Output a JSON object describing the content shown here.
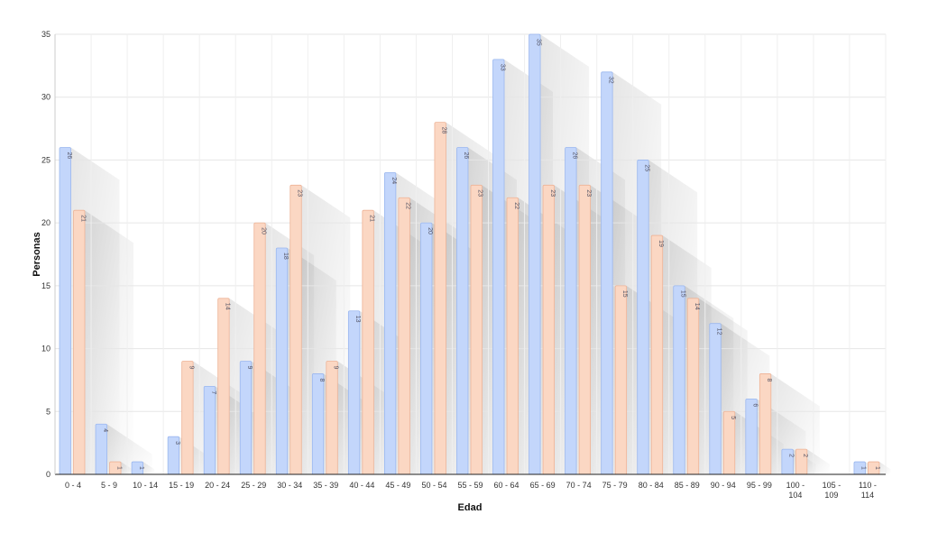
{
  "chart_data": {
    "type": "bar",
    "title": "",
    "xlabel": "Edad",
    "ylabel": "Personas",
    "ylim": [
      0,
      35
    ],
    "yticks": [
      0,
      5,
      10,
      15,
      20,
      25,
      30,
      35
    ],
    "grid": true,
    "legend": "none",
    "categories": [
      "0 - 4",
      "5 - 9",
      "10 - 14",
      "15 - 19",
      "20 - 24",
      "25 - 29",
      "30 - 34",
      "35 - 39",
      "40 - 44",
      "45 - 49",
      "50 - 54",
      "55 - 59",
      "60 - 64",
      "65 - 69",
      "70 - 74",
      "75 - 79",
      "80 - 84",
      "85 - 89",
      "90 - 94",
      "95 - 99",
      "100 - 104",
      "105 - 109",
      "110 - 114"
    ],
    "series": [
      {
        "color": "#c3d6fb",
        "stroke": "#9ab7ef",
        "values": [
          26,
          4,
          1,
          3,
          7,
          9,
          18,
          8,
          13,
          24,
          20,
          26,
          33,
          35,
          26,
          32,
          25,
          15,
          12,
          6,
          2,
          0,
          1
        ]
      },
      {
        "color": "#fbd7c3",
        "stroke": "#eeb396",
        "values": [
          21,
          1,
          0,
          9,
          14,
          20,
          23,
          9,
          21,
          22,
          28,
          23,
          22,
          23,
          23,
          15,
          19,
          14,
          5,
          8,
          2,
          0,
          1
        ]
      }
    ]
  }
}
